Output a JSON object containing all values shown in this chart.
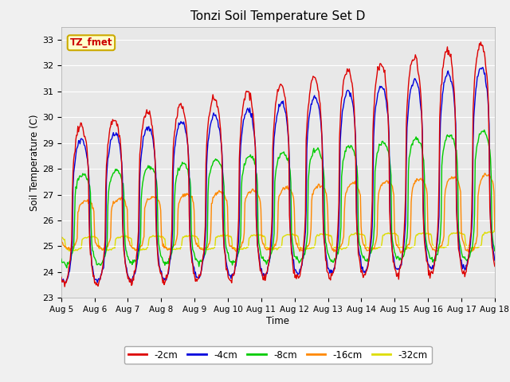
{
  "title": "Tonzi Soil Temperature Set D",
  "xlabel": "Time",
  "ylabel": "Soil Temperature (C)",
  "ylim": [
    23.0,
    33.5
  ],
  "yticks": [
    23.0,
    24.0,
    25.0,
    26.0,
    27.0,
    28.0,
    29.0,
    30.0,
    31.0,
    32.0,
    33.0
  ],
  "xtick_labels": [
    "Aug 5",
    "Aug 6",
    "Aug 7",
    "Aug 8",
    "Aug 9",
    "Aug 10",
    "Aug 11",
    "Aug 12",
    "Aug 13",
    "Aug 14",
    "Aug 15",
    "Aug 16",
    "Aug 17",
    "Aug 18"
  ],
  "colors": {
    "-2cm": "#dd0000",
    "-4cm": "#0000dd",
    "-8cm": "#00cc00",
    "-16cm": "#ff8800",
    "-32cm": "#dddd00"
  },
  "annotation_text": "TZ_fmet",
  "annotation_facecolor": "#ffffcc",
  "annotation_edgecolor": "#ccaa00",
  "annotation_textcolor": "#cc0000",
  "fig_facecolor": "#f0f0f0",
  "ax_facecolor": "#e8e8e8",
  "grid_color": "#ffffff"
}
